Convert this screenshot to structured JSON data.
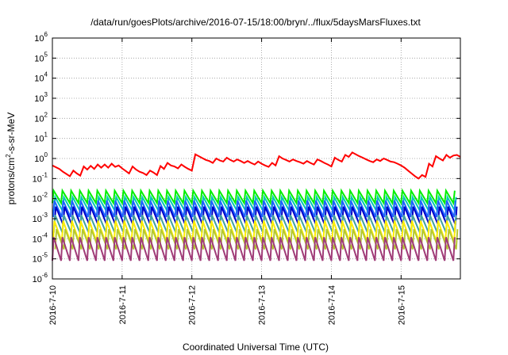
{
  "chart_data": {
    "type": "line",
    "title": "/data/run/goesPlots/archive/2016-07-15/18:00/bryn/../flux/5daysMarsFluxes.txt",
    "xlabel": "Coordinated Universal Time (UTC)",
    "ylabel": "protons/cm²-s-sr-MeV",
    "ylabel_parts": {
      "before": "protons/cm",
      "sup": "2",
      "after": "-s-sr-MeV"
    },
    "x_ticks": [
      "2016-7-10",
      "2016-7-11",
      "2016-7-12",
      "2016-7-13",
      "2016-7-14",
      "2016-7-15"
    ],
    "x_range_days": [
      0,
      5.85
    ],
    "y_scale": "log",
    "y_range": [
      1e-06,
      1000000.0
    ],
    "y_ticks": [
      {
        "base": "10",
        "exp": "-6"
      },
      {
        "base": "10",
        "exp": "-5"
      },
      {
        "base": "10",
        "exp": "-4"
      },
      {
        "base": "10",
        "exp": "-3"
      },
      {
        "base": "10",
        "exp": "-2"
      },
      {
        "base": "10",
        "exp": "-1"
      },
      {
        "base": "10",
        "exp": "0"
      },
      {
        "base": "10",
        "exp": "1"
      },
      {
        "base": "10",
        "exp": "2"
      },
      {
        "base": "10",
        "exp": "3"
      },
      {
        "base": "10",
        "exp": "4"
      },
      {
        "base": "10",
        "exp": "5"
      },
      {
        "base": "10",
        "exp": "6"
      }
    ],
    "grid": true,
    "legend": "none",
    "series": [
      {
        "color": "#ff0000",
        "points": [
          [
            0.0,
            0.45
          ],
          [
            0.1,
            0.3
          ],
          [
            0.15,
            0.22
          ],
          [
            0.2,
            0.17
          ],
          [
            0.25,
            0.13
          ],
          [
            0.3,
            0.25
          ],
          [
            0.35,
            0.18
          ],
          [
            0.4,
            0.14
          ],
          [
            0.45,
            0.4
          ],
          [
            0.5,
            0.28
          ],
          [
            0.55,
            0.43
          ],
          [
            0.6,
            0.3
          ],
          [
            0.65,
            0.5
          ],
          [
            0.7,
            0.35
          ],
          [
            0.75,
            0.5
          ],
          [
            0.8,
            0.35
          ],
          [
            0.85,
            0.55
          ],
          [
            0.9,
            0.38
          ],
          [
            0.95,
            0.45
          ],
          [
            1.0,
            0.32
          ],
          [
            1.05,
            0.24
          ],
          [
            1.1,
            0.18
          ],
          [
            1.15,
            0.4
          ],
          [
            1.2,
            0.28
          ],
          [
            1.25,
            0.22
          ],
          [
            1.3,
            0.19
          ],
          [
            1.35,
            0.15
          ],
          [
            1.4,
            0.25
          ],
          [
            1.45,
            0.2
          ],
          [
            1.5,
            0.15
          ],
          [
            1.55,
            0.42
          ],
          [
            1.6,
            0.3
          ],
          [
            1.65,
            0.6
          ],
          [
            1.7,
            0.45
          ],
          [
            1.75,
            0.4
          ],
          [
            1.8,
            0.32
          ],
          [
            1.85,
            0.5
          ],
          [
            1.9,
            0.38
          ],
          [
            1.95,
            0.3
          ],
          [
            2.0,
            0.25
          ],
          [
            2.05,
            1.6
          ],
          [
            2.1,
            1.3
          ],
          [
            2.15,
            1.05
          ],
          [
            2.2,
            0.85
          ],
          [
            2.25,
            0.75
          ],
          [
            2.3,
            0.6
          ],
          [
            2.35,
            1.0
          ],
          [
            2.4,
            0.8
          ],
          [
            2.45,
            0.7
          ],
          [
            2.5,
            1.1
          ],
          [
            2.55,
            0.85
          ],
          [
            2.6,
            0.7
          ],
          [
            2.65,
            0.9
          ],
          [
            2.7,
            0.75
          ],
          [
            2.75,
            0.6
          ],
          [
            2.8,
            0.75
          ],
          [
            2.85,
            0.6
          ],
          [
            2.9,
            0.5
          ],
          [
            2.95,
            0.7
          ],
          [
            3.0,
            0.55
          ],
          [
            3.05,
            0.45
          ],
          [
            3.1,
            0.38
          ],
          [
            3.15,
            0.6
          ],
          [
            3.2,
            0.45
          ],
          [
            3.25,
            1.3
          ],
          [
            3.3,
            1.0
          ],
          [
            3.35,
            0.85
          ],
          [
            3.4,
            0.7
          ],
          [
            3.45,
            0.9
          ],
          [
            3.5,
            0.75
          ],
          [
            3.55,
            0.65
          ],
          [
            3.6,
            0.55
          ],
          [
            3.65,
            0.75
          ],
          [
            3.7,
            0.6
          ],
          [
            3.75,
            0.5
          ],
          [
            3.8,
            0.9
          ],
          [
            3.85,
            0.75
          ],
          [
            3.9,
            0.6
          ],
          [
            3.95,
            0.5
          ],
          [
            4.0,
            0.4
          ],
          [
            4.05,
            1.1
          ],
          [
            4.1,
            0.85
          ],
          [
            4.15,
            0.7
          ],
          [
            4.2,
            1.5
          ],
          [
            4.25,
            1.2
          ],
          [
            4.3,
            2.0
          ],
          [
            4.35,
            1.6
          ],
          [
            4.4,
            1.3
          ],
          [
            4.45,
            1.1
          ],
          [
            4.5,
            0.9
          ],
          [
            4.55,
            0.75
          ],
          [
            4.6,
            0.65
          ],
          [
            4.65,
            0.9
          ],
          [
            4.7,
            0.75
          ],
          [
            4.75,
            1.0
          ],
          [
            4.8,
            0.85
          ],
          [
            4.85,
            0.7
          ],
          [
            4.9,
            0.65
          ],
          [
            4.95,
            0.55
          ],
          [
            5.0,
            0.45
          ],
          [
            5.05,
            0.35
          ],
          [
            5.1,
            0.25
          ],
          [
            5.15,
            0.18
          ],
          [
            5.2,
            0.13
          ],
          [
            5.25,
            0.1
          ],
          [
            5.3,
            0.15
          ],
          [
            5.35,
            0.12
          ],
          [
            5.4,
            0.55
          ],
          [
            5.45,
            0.4
          ],
          [
            5.5,
            1.3
          ],
          [
            5.55,
            1.0
          ],
          [
            5.6,
            0.8
          ],
          [
            5.65,
            1.5
          ],
          [
            5.7,
            1.1
          ],
          [
            5.75,
            1.4
          ],
          [
            5.8,
            1.5
          ],
          [
            5.85,
            1.2
          ]
        ]
      },
      {
        "color": "#00ee00",
        "top": 0.025,
        "bottom": 0.006,
        "period": 0.125,
        "phase": 0.0
      },
      {
        "color": "#00c8b4",
        "top": 0.012,
        "bottom": 0.0025,
        "period": 0.125,
        "phase": 0.02
      },
      {
        "color": "#1e64ff",
        "top": 0.008,
        "bottom": 0.0012,
        "period": 0.125,
        "phase": 0.01
      },
      {
        "color": "#0000c8",
        "top": 0.004,
        "bottom": 0.0005,
        "period": 0.125,
        "phase": 0.03
      },
      {
        "color": "#40a0a0",
        "top": 0.0015,
        "bottom": 0.0002,
        "period": 0.125,
        "phase": 0.02
      },
      {
        "color": "#ffee00",
        "top": 0.0008,
        "bottom": 7e-05,
        "period": 0.125,
        "phase": 0.01
      },
      {
        "color": "#b4c832",
        "top": 0.0003,
        "bottom": 3e-05,
        "period": 0.125,
        "phase": 0.04
      },
      {
        "color": "#a03c78",
        "top": 0.00012,
        "bottom": 8e-06,
        "period": 0.125,
        "phase": 0.0
      }
    ]
  }
}
